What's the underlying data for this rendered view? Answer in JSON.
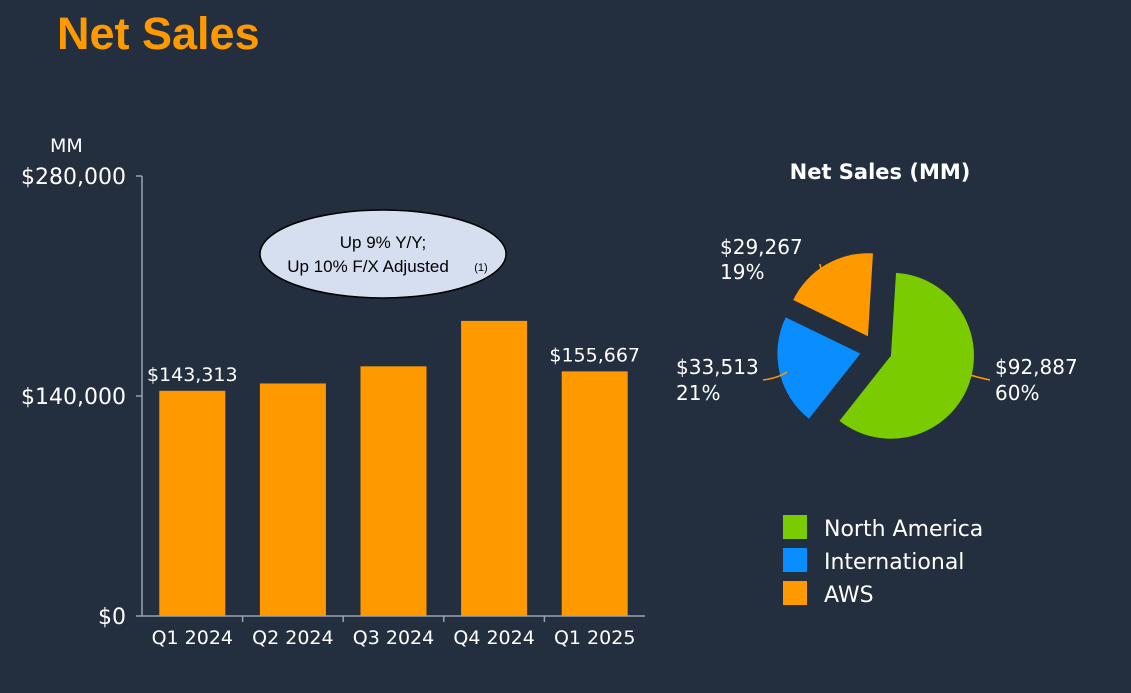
{
  "page": {
    "title": "Net Sales",
    "colors": {
      "background": "#232f3e",
      "title": "#ff9900",
      "bar": "#ff9900",
      "north_america": "#7acc00",
      "international": "#0a8eff",
      "aws": "#ff9900",
      "callout_fill": "#d5dff0"
    }
  },
  "chart_data": [
    {
      "type": "bar",
      "unit_label": "MM",
      "categories": [
        "Q1 2024",
        "Q2 2024",
        "Q3 2024",
        "Q4 2024",
        "Q1 2025"
      ],
      "values": [
        143313,
        147977,
        158877,
        187792,
        155667
      ],
      "data_labels": [
        "$143,313",
        "",
        "",
        "",
        "$155,667"
      ],
      "yticks": [
        {
          "value": 0,
          "label": "$0"
        },
        {
          "value": 140000,
          "label": "$140,000"
        },
        {
          "value": 280000,
          "label": "$280,000"
        }
      ],
      "ylim": [
        0,
        280000
      ],
      "callout": {
        "line1": "Up 9% Y/Y;",
        "line2": "Up 10% F/X Adjusted",
        "footnote": "(1)"
      }
    },
    {
      "type": "pie",
      "title": "Net Sales (MM)",
      "slices": [
        {
          "name": "North America",
          "value": 92887,
          "value_label": "$92,887",
          "percent_label": "60%",
          "color": "#7acc00"
        },
        {
          "name": "International",
          "value": 33513,
          "value_label": "$33,513",
          "percent_label": "21%",
          "color": "#0a8eff"
        },
        {
          "name": "AWS",
          "value": 29267,
          "value_label": "$29,267",
          "percent_label": "19%",
          "color": "#ff9900"
        }
      ],
      "legend": [
        "North America",
        "International",
        "AWS"
      ]
    }
  ]
}
